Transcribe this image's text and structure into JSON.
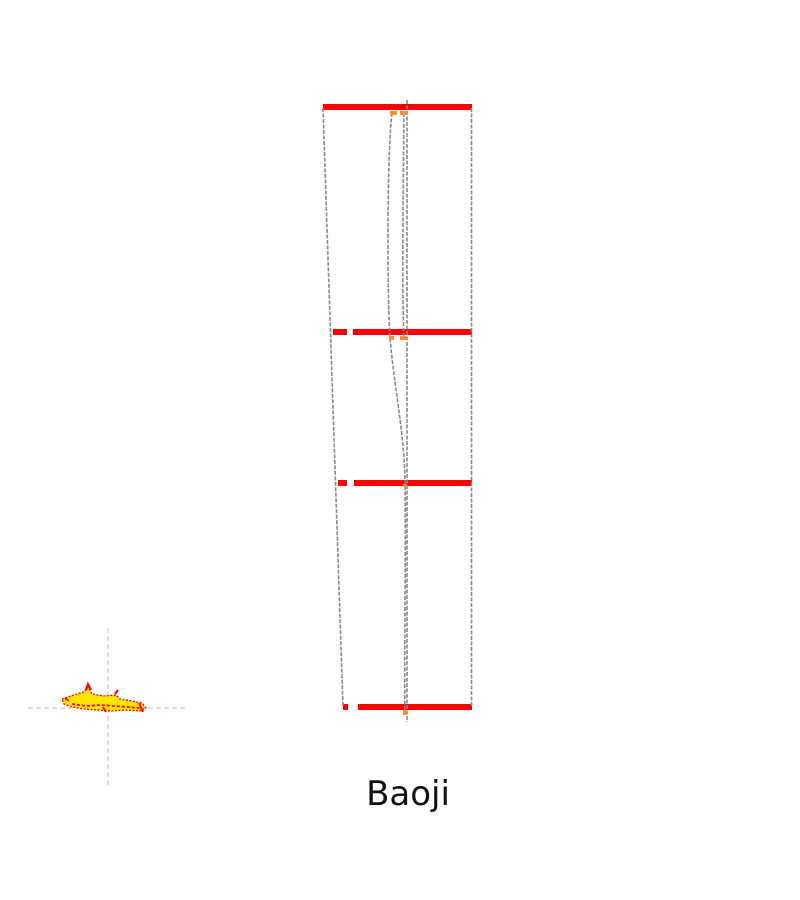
{
  "map": {
    "label": "Baoji",
    "colors": {
      "river_main": "#ff0000",
      "river_branch": "#ff8c3a",
      "road": "#888888",
      "crosshair": "#cccccc",
      "inset_fill": "#ffe600",
      "inset_outline": "#ff0000",
      "background": "#ffffff"
    }
  }
}
